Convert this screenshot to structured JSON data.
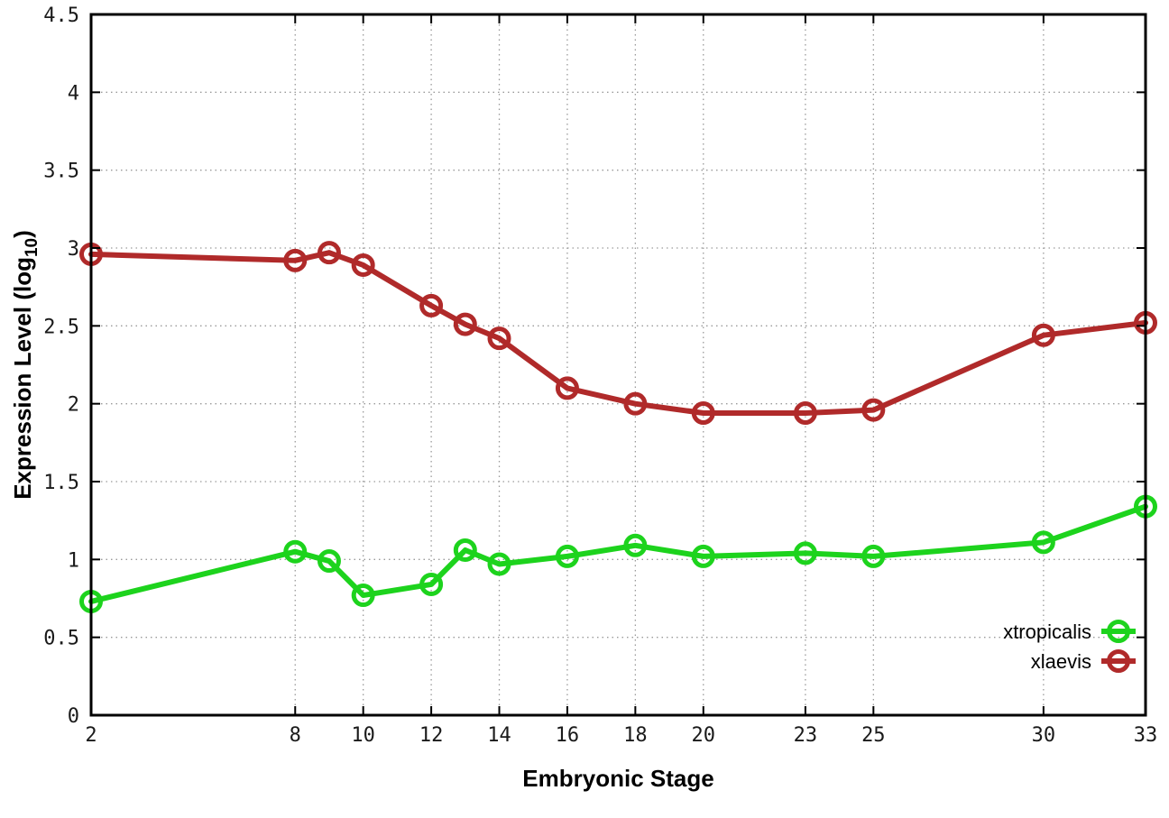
{
  "figure": {
    "background": "#ffffff",
    "border_color": "#000000",
    "grid_color": "#9a9a9a",
    "tick_label_color": "#1a1a1a"
  },
  "chart_data": {
    "type": "line",
    "xlabel": "Embryonic Stage",
    "ylabel": "Expression Level (log10)",
    "ylabel_parts": {
      "base": "Expression Level (log",
      "subscript": "10",
      "close": ")"
    },
    "xlim": [
      2,
      33
    ],
    "ylim": [
      0,
      4.5
    ],
    "grid": true,
    "grid_style": "dotted",
    "xticks": {
      "values": [
        2,
        8,
        10,
        12,
        14,
        16,
        18,
        20,
        23,
        25,
        30,
        33
      ],
      "labels": [
        "2",
        "8",
        "10",
        "12",
        "14",
        "16",
        "18",
        "20",
        "23",
        "25",
        "30",
        "33"
      ]
    },
    "yticks": {
      "values": [
        0,
        0.5,
        1,
        1.5,
        2,
        2.5,
        3,
        3.5,
        4,
        4.5
      ],
      "labels": [
        "0",
        "0.5",
        "1",
        "1.5",
        "2",
        "2.5",
        "3",
        "3.5",
        "4",
        "4.5"
      ]
    },
    "x": [
      2,
      8,
      9,
      10,
      12,
      13,
      14,
      16,
      18,
      20,
      23,
      25,
      30,
      33
    ],
    "series": [
      {
        "name": "xtropicalis",
        "color": "#1dd31d",
        "marker": "open-circle",
        "values": [
          0.73,
          1.05,
          0.99,
          0.77,
          0.84,
          1.06,
          0.97,
          1.02,
          1.09,
          1.02,
          1.04,
          1.02,
          1.11,
          1.34
        ]
      },
      {
        "name": "xlaevis",
        "color": "#b02a2a",
        "marker": "open-circle",
        "values": [
          2.96,
          2.92,
          2.97,
          2.89,
          2.63,
          2.51,
          2.42,
          2.1,
          2.0,
          1.94,
          1.94,
          1.96,
          2.44,
          2.52
        ]
      }
    ],
    "legend": {
      "position": "bottom-right-inside",
      "entries": [
        "xtropicalis",
        "xlaevis"
      ]
    }
  }
}
